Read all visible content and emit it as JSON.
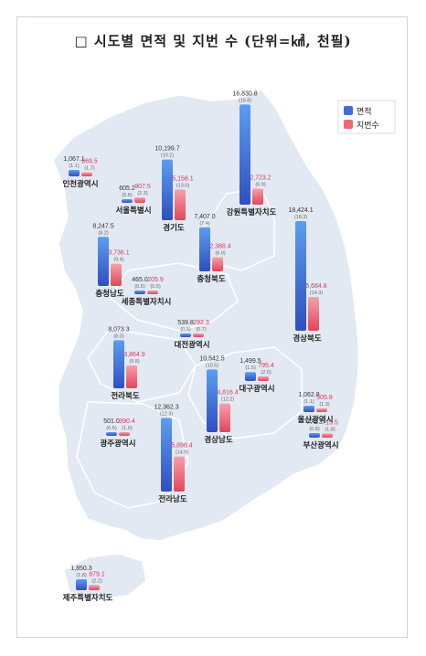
{
  "title": "□ 시도별 면적 및 지번 수 (단위=㎢, 천필)",
  "legend": {
    "area": "면적",
    "lots": "지번수"
  },
  "colors": {
    "area": "#3f6fd6",
    "lots": "#ee6a78",
    "map": "#e3e9f3",
    "outline": "#ffffff",
    "label": "#222222",
    "value": "#333333",
    "lotsValue": "#d13b5a",
    "pct": "#666666"
  },
  "chart_data": {
    "type": "bar",
    "title": "□ 시도별 면적 및 지번 수 (단위=㎢, 천필)",
    "series": [
      {
        "name": "면적"
      },
      {
        "name": "지번수"
      }
    ],
    "regions": [
      {
        "name": "인천광역시",
        "area": "1,067.1",
        "area_pct": "(1.1)",
        "lots": "669.5",
        "lots_pct": "(1.7)",
        "area_v": 1067.1,
        "lots_v": 669.5
      },
      {
        "name": "서울특별시",
        "area": "605.2",
        "area_pct": "(0.6)",
        "lots": "907.5",
        "lots_pct": "(2.3)",
        "area_v": 605.2,
        "lots_v": 907.5
      },
      {
        "name": "경기도",
        "area": "10,199.7",
        "area_pct": "(10.2)",
        "lots": "5,158.1",
        "lots_pct": "(13.0)",
        "area_v": 10199.7,
        "lots_v": 5158.1
      },
      {
        "name": "강원특별자치도",
        "area": "16,830.8",
        "area_pct": "(16.8)",
        "lots": "2,723.2",
        "lots_pct": "(6.9)",
        "area_v": 16830.8,
        "lots_v": 2723.2
      },
      {
        "name": "충청남도",
        "area": "8,247.5",
        "area_pct": "(8.2)",
        "lots": "3,736.1",
        "lots_pct": "(9.4)",
        "area_v": 8247.5,
        "lots_v": 3736.1
      },
      {
        "name": "충청북도",
        "area": "7,407.0",
        "area_pct": "(7.4)",
        "lots": "2,388.4",
        "lots_pct": "(6.0)",
        "area_v": 7407.0,
        "lots_v": 2388.4
      },
      {
        "name": "경상북도",
        "area": "18,424.1",
        "area_pct": "(18.3)",
        "lots": "5,684.8",
        "lots_pct": "(14.3)",
        "area_v": 18424.1,
        "lots_v": 5684.8
      },
      {
        "name": "세종특별자치시",
        "area": "465.0",
        "area_pct": "(0.5)",
        "lots": "205.9",
        "lots_pct": "(0.5)",
        "area_v": 465.0,
        "lots_v": 205.9
      },
      {
        "name": "대전광역시",
        "area": "539.8",
        "area_pct": "(0.5)",
        "lots": "292.3",
        "lots_pct": "(0.7)",
        "area_v": 539.8,
        "lots_v": 292.3
      },
      {
        "name": "전라북도",
        "area": "8,073.3",
        "area_pct": "(8.0)",
        "lots": "3,864.9",
        "lots_pct": "(9.8)",
        "area_v": 8073.3,
        "lots_v": 3864.9
      },
      {
        "name": "대구광역시",
        "area": "1,499.5",
        "area_pct": "(1.5)",
        "lots": "795.4",
        "lots_pct": "(2.0)",
        "area_v": 1499.5,
        "lots_v": 795.4
      },
      {
        "name": "경상남도",
        "area": "10,542.5",
        "area_pct": "(10.5)",
        "lots": "4,816.4",
        "lots_pct": "(12.2)",
        "area_v": 10542.5,
        "lots_v": 4816.4
      },
      {
        "name": "울산광역시",
        "area": "1,062.8",
        "area_pct": "(1.1)",
        "lots": "505.8",
        "lots_pct": "(1.3)",
        "area_v": 1062.8,
        "lots_v": 505.8
      },
      {
        "name": "광주광역시",
        "area": "501.0",
        "area_pct": "(0.5)",
        "lots": "390.4",
        "lots_pct": "(1.0)",
        "area_v": 501.0,
        "lots_v": 390.4
      },
      {
        "name": "전라남도",
        "area": "12,362.3",
        "area_pct": "(12.3)",
        "lots": "5,898.4",
        "lots_pct": "(14.9)",
        "area_v": 12362.3,
        "lots_v": 5898.4
      },
      {
        "name": "부산광역시",
        "area": "771.3",
        "area_pct": "(0.8)",
        "lots": "715.5",
        "lots_pct": "(1.8)",
        "area_v": 771.3,
        "lots_v": 715.5
      },
      {
        "name": "제주특별자치도",
        "area": "1,850.3",
        "area_pct": "(1.8)",
        "lots": "879.1",
        "lots_pct": "(2.2)",
        "area_v": 1850.3,
        "lots_v": 879.1
      }
    ]
  }
}
